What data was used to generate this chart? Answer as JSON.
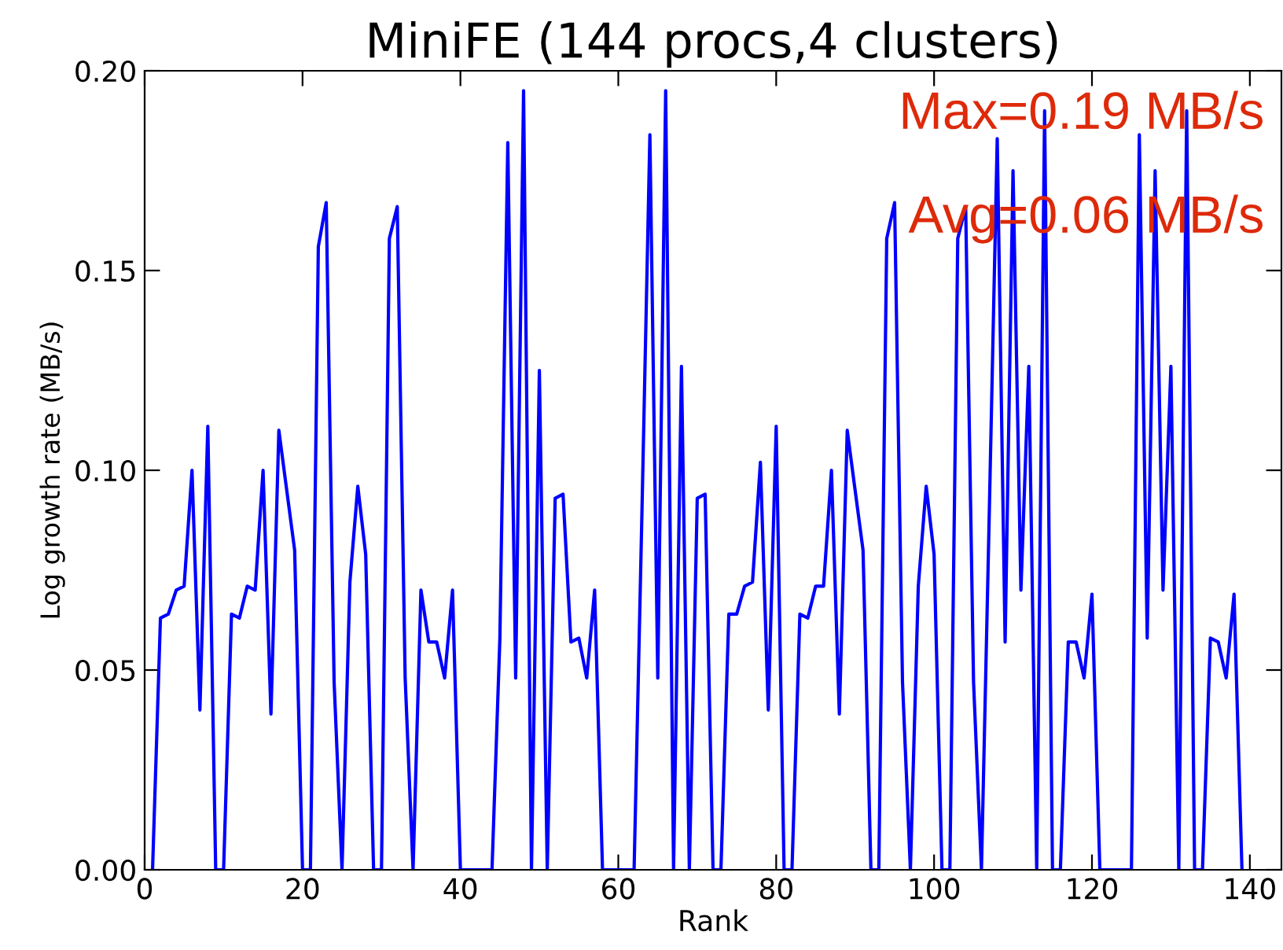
{
  "chart_data": {
    "type": "line",
    "title": "MiniFE (144 procs,4 clusters)",
    "xlabel": "Rank",
    "ylabel": "Log growth rate (MB/s)",
    "annotations": [
      "Max=0.19 MB/s",
      "Avg=0.06 MB/s"
    ],
    "x": [
      1,
      2,
      3,
      4,
      5,
      6,
      7,
      8,
      9,
      10,
      11,
      12,
      13,
      14,
      15,
      16,
      17,
      18,
      19,
      20,
      21,
      22,
      23,
      24,
      25,
      26,
      27,
      28,
      29,
      30,
      31,
      32,
      33,
      34,
      35,
      36,
      37,
      38,
      39,
      40,
      41,
      42,
      43,
      44,
      45,
      46,
      47,
      48,
      49,
      50,
      51,
      52,
      53,
      54,
      55,
      56,
      57,
      58,
      59,
      60,
      61,
      62,
      63,
      64,
      65,
      66,
      67,
      68,
      69,
      70,
      71,
      72,
      73,
      74,
      75,
      76,
      77,
      78,
      79,
      80,
      81,
      82,
      83,
      84,
      85,
      86,
      87,
      88,
      89,
      90,
      91,
      92,
      93,
      94,
      95,
      96,
      97,
      98,
      99,
      100,
      101,
      102,
      103,
      104,
      105,
      106,
      107,
      108,
      109,
      110,
      111,
      112,
      113,
      114,
      115,
      116,
      117,
      118,
      119,
      120,
      121,
      122,
      123,
      124,
      125,
      126,
      127,
      128,
      129,
      130,
      131,
      132,
      133,
      134,
      135,
      136,
      137,
      138,
      139
    ],
    "series": [
      {
        "color": "#0000ff",
        "values": [
          0,
          0.063,
          0.064,
          0.07,
          0.071,
          0.1,
          0.04,
          0.111,
          0,
          0,
          0.064,
          0.063,
          0.071,
          0.07,
          0.1,
          0.039,
          0.11,
          0.095,
          0.08,
          0,
          0,
          0.156,
          0.167,
          0.047,
          0,
          0.072,
          0.096,
          0.079,
          0,
          0,
          0.158,
          0.166,
          0.048,
          0,
          0.07,
          0.057,
          0.057,
          0.048,
          0.07,
          0,
          0,
          0,
          0,
          0,
          0.058,
          0.182,
          0.048,
          0.195,
          0,
          0.125,
          0,
          0.093,
          0.094,
          0.057,
          0.058,
          0.048,
          0.07,
          0,
          0,
          0,
          0,
          0,
          0.09,
          0.184,
          0.048,
          0.195,
          0,
          0.126,
          0,
          0.093,
          0.094,
          0,
          0,
          0.064,
          0.064,
          0.071,
          0.072,
          0.102,
          0.04,
          0.111,
          0,
          0,
          0.064,
          0.063,
          0.071,
          0.071,
          0.1,
          0.039,
          0.11,
          0.095,
          0.08,
          0,
          0,
          0.158,
          0.167,
          0.047,
          0,
          0.071,
          0.096,
          0.079,
          0,
          0,
          0.158,
          0.166,
          0.047,
          0,
          0.09,
          0.183,
          0.057,
          0.175,
          0.07,
          0.126,
          0,
          0.19,
          0,
          0,
          0.057,
          0.057,
          0.048,
          0.069,
          0,
          0,
          0,
          0,
          0,
          0.184,
          0.058,
          0.175,
          0.07,
          0.126,
          0,
          0.19,
          0,
          0,
          0.058,
          0.057,
          0.048,
          0.069,
          0
        ]
      }
    ],
    "xlim": [
      0,
      144
    ],
    "ylim": [
      0,
      0.2
    ],
    "xticks": [
      0,
      20,
      40,
      60,
      80,
      100,
      120,
      140
    ],
    "yticks": [
      {
        "value": 0,
        "label": "0.00"
      },
      {
        "value": 0.05,
        "label": "0.05"
      },
      {
        "value": 0.1,
        "label": "0.10"
      },
      {
        "value": 0.15,
        "label": "0.15"
      },
      {
        "value": 0.2,
        "label": "0.20"
      }
    ],
    "grid": false,
    "legend": false,
    "marker": "none",
    "line_style": "solid"
  }
}
